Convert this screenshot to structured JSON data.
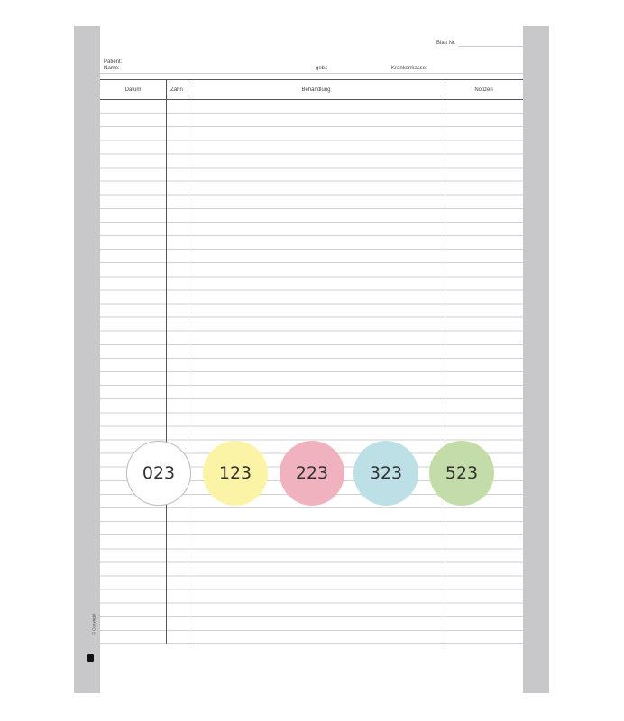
{
  "header": {
    "sheet_no_label": "Blatt Nr.",
    "patient_label": "Patient:",
    "name_label": "Name:",
    "dob_label": "geb.:",
    "insurance_label": "Krankenkasse:"
  },
  "table": {
    "columns": [
      "Datum",
      "Zahn",
      "Behandlung",
      "Notizen"
    ]
  },
  "labels": [
    {
      "text": "023",
      "color": "#ffffff"
    },
    {
      "text": "123",
      "color": "#fbf3a6"
    },
    {
      "text": "223",
      "color": "#f1b2c0"
    },
    {
      "text": "323",
      "color": "#bde0e6"
    },
    {
      "text": "523",
      "color": "#c4dca9"
    }
  ],
  "footer": {
    "copyright": "© Copyright"
  },
  "colors": {
    "side_bar": "#c8c8ca"
  }
}
